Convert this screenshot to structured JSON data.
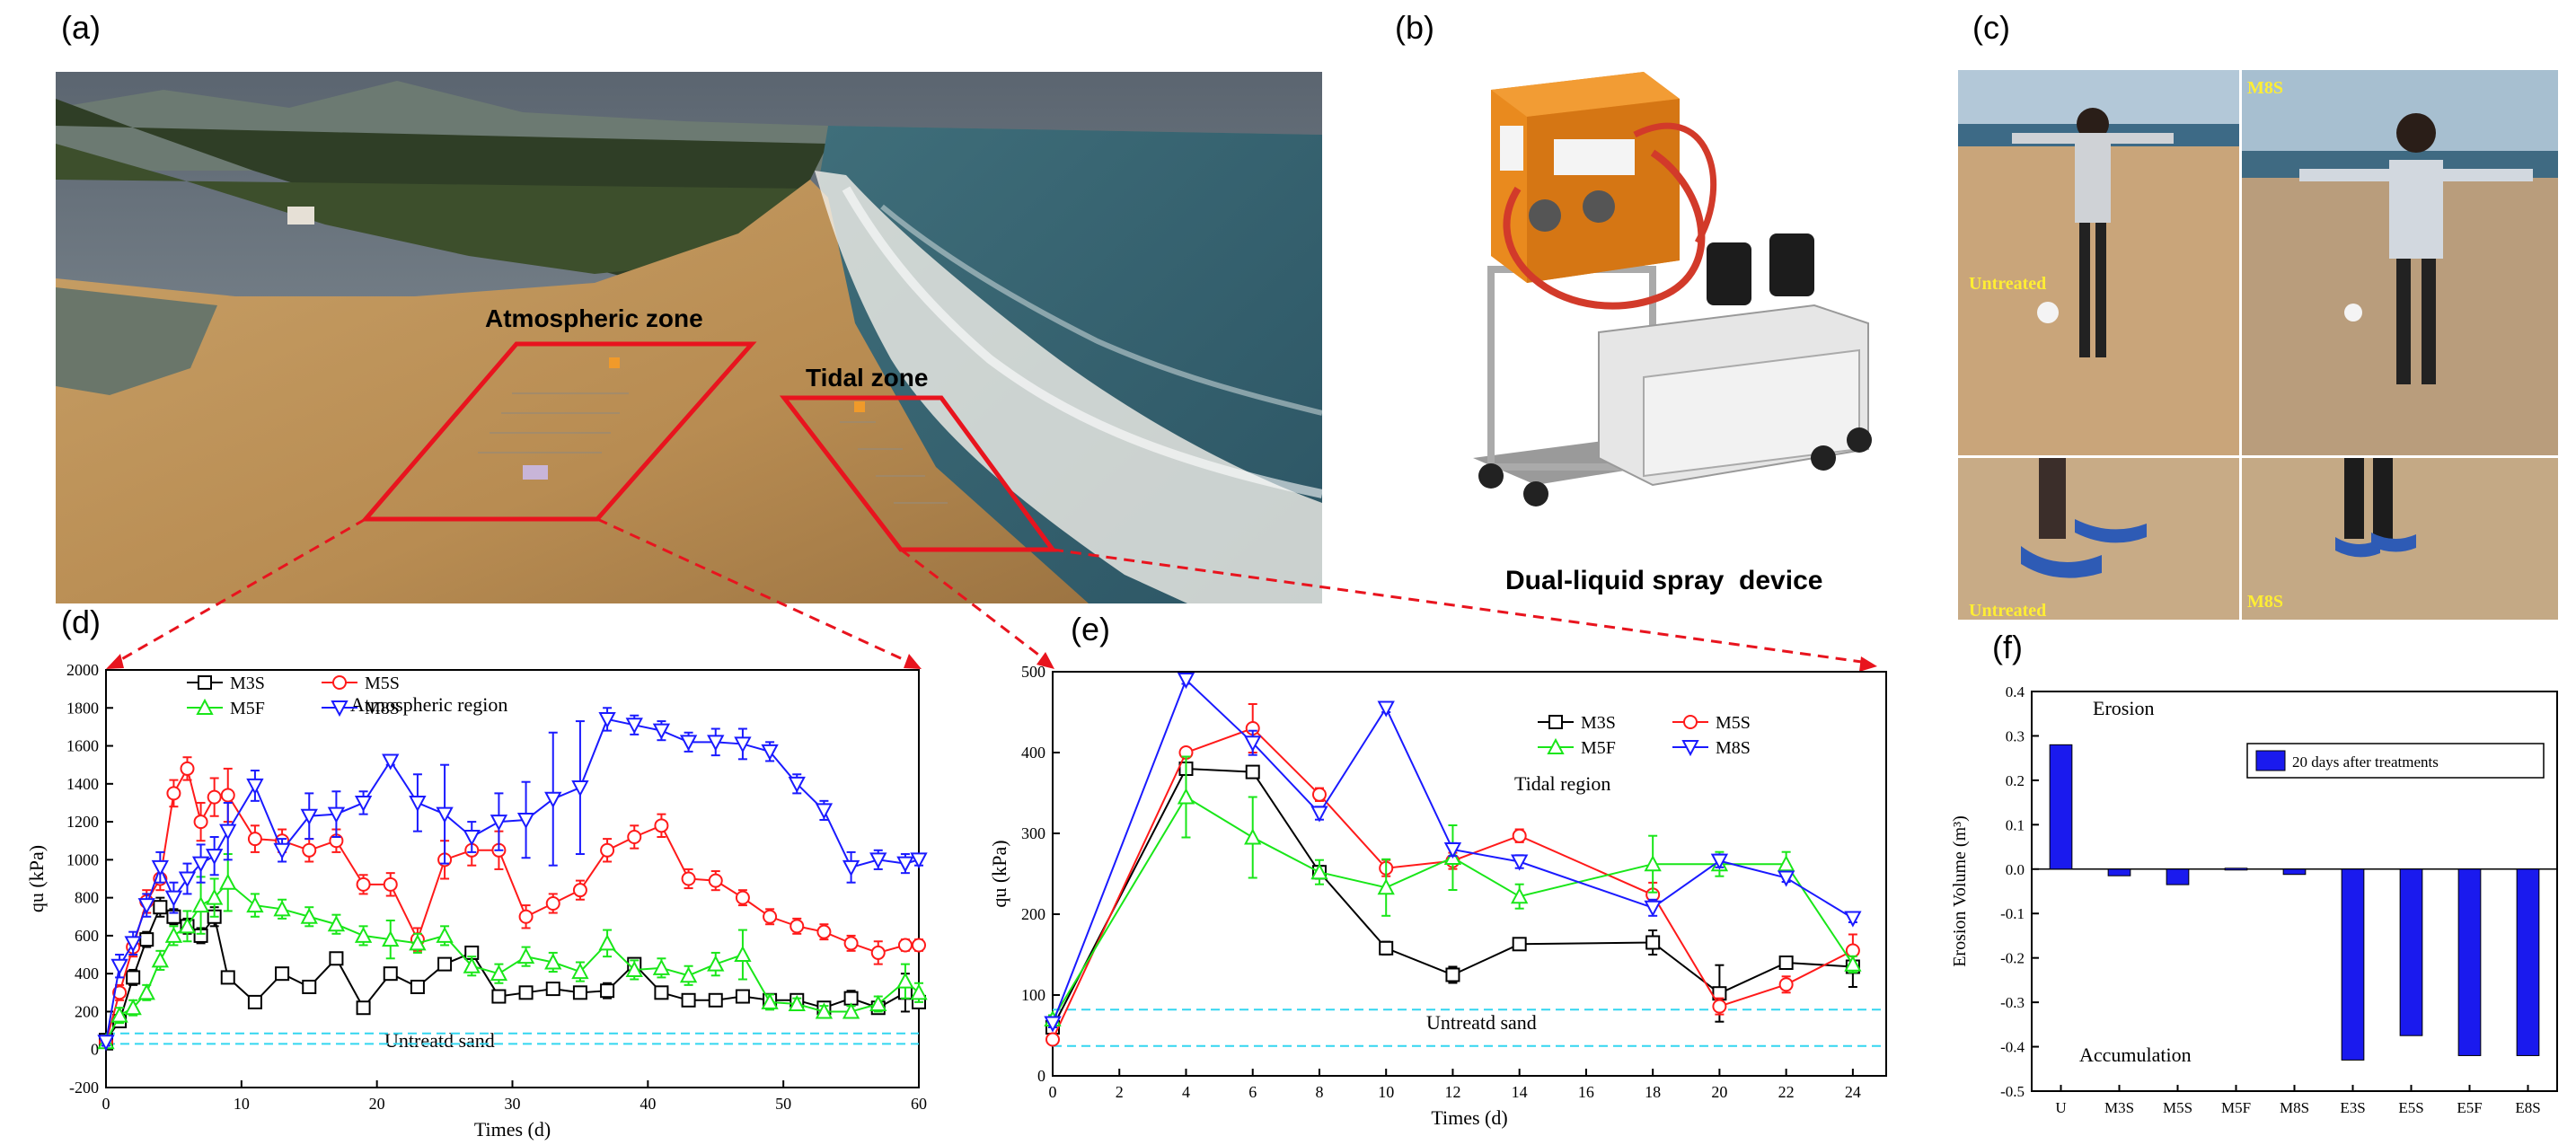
{
  "panels": {
    "a": {
      "letter": "(a)",
      "atmospheric_label": "Atmospheric zone",
      "tidal_label": "Tidal zone",
      "colors": {
        "outline": "#e8141e"
      }
    },
    "b": {
      "letter": "(b)",
      "device_label": "Dual-liquid spray  device"
    },
    "c": {
      "letter": "(c)",
      "labels": {
        "top_left": "Untreated",
        "top_right": "M8S",
        "bottom_left": "Untreated",
        "bottom_right": "M8S"
      }
    },
    "d": {
      "letter": "(d)"
    },
    "e": {
      "letter": "(e)"
    },
    "f": {
      "letter": "(f)"
    }
  },
  "colors": {
    "M3S": "#000000",
    "M5S": "#ff1a1a",
    "M5F": "#19e619",
    "M8S": "#1a1aff",
    "untreated_line": "#33d6f0",
    "bar": "#1a1aee",
    "arrow": "#e8141e"
  },
  "chart_data": [
    {
      "id": "d",
      "type": "line",
      "annotation": "Atmospheric region",
      "reference_label": "Untreatd sand",
      "reference_lines": [
        30,
        85
      ],
      "xlabel": "Times (d)",
      "ylabel": "qu (kPa)",
      "xlim": [
        0,
        60
      ],
      "ylim": [
        -200,
        2000
      ],
      "xticks": [
        0,
        10,
        20,
        30,
        40,
        50,
        60
      ],
      "yticks": [
        -200,
        0,
        200,
        400,
        600,
        800,
        1000,
        1200,
        1400,
        1600,
        1800,
        2000
      ],
      "legend": [
        "M3S",
        "M5S",
        "M5F",
        "M8S"
      ],
      "legend_position": "top-left",
      "series": [
        {
          "name": "M3S",
          "marker": "square",
          "x": [
            0,
            1,
            2,
            3,
            4,
            5,
            6,
            7,
            8,
            9,
            11,
            13,
            15,
            17,
            19,
            21,
            23,
            25,
            27,
            29,
            31,
            33,
            35,
            37,
            39,
            41,
            43,
            45,
            47,
            49,
            51,
            53,
            55,
            57,
            59,
            60
          ],
          "y": [
            50,
            150,
            380,
            580,
            750,
            700,
            650,
            600,
            700,
            380,
            250,
            400,
            330,
            480,
            220,
            400,
            330,
            450,
            510,
            280,
            300,
            320,
            300,
            310,
            450,
            300,
            260,
            260,
            280,
            260,
            260,
            220,
            270,
            220,
            300,
            250
          ],
          "err": [
            20,
            30,
            40,
            40,
            50,
            40,
            40,
            40,
            50,
            30,
            30,
            30,
            30,
            30,
            30,
            30,
            30,
            30,
            30,
            30,
            30,
            30,
            30,
            40,
            30,
            30,
            30,
            30,
            30,
            30,
            30,
            30,
            40,
            30,
            100,
            30
          ]
        },
        {
          "name": "M5S",
          "marker": "circle",
          "x": [
            0,
            1,
            2,
            3,
            4,
            5,
            6,
            7,
            8,
            9,
            11,
            13,
            15,
            17,
            19,
            21,
            23,
            25,
            27,
            29,
            31,
            33,
            35,
            37,
            39,
            41,
            43,
            45,
            47,
            49,
            51,
            53,
            55,
            57,
            59,
            60
          ],
          "y": [
            40,
            300,
            540,
            780,
            900,
            1350,
            1480,
            1200,
            1330,
            1340,
            1110,
            1100,
            1050,
            1100,
            870,
            870,
            580,
            1000,
            1050,
            1050,
            700,
            770,
            840,
            1050,
            1120,
            1180,
            900,
            890,
            800,
            700,
            650,
            620,
            560,
            510,
            550,
            550
          ],
          "err": [
            20,
            40,
            50,
            60,
            60,
            70,
            60,
            100,
            100,
            140,
            70,
            60,
            60,
            60,
            50,
            60,
            60,
            100,
            80,
            100,
            60,
            50,
            50,
            60,
            60,
            60,
            50,
            50,
            40,
            40,
            40,
            40,
            40,
            60,
            30,
            30
          ]
        },
        {
          "name": "M5F",
          "marker": "triangle-up",
          "x": [
            0,
            1,
            2,
            3,
            4,
            5,
            6,
            7,
            8,
            9,
            11,
            13,
            15,
            17,
            19,
            21,
            23,
            25,
            27,
            29,
            31,
            33,
            35,
            37,
            39,
            41,
            43,
            45,
            47,
            49,
            51,
            53,
            55,
            57,
            59,
            60
          ],
          "y": [
            40,
            180,
            220,
            300,
            470,
            600,
            650,
            760,
            800,
            880,
            760,
            740,
            700,
            660,
            600,
            580,
            560,
            600,
            440,
            400,
            490,
            460,
            410,
            560,
            420,
            430,
            390,
            450,
            500,
            250,
            240,
            200,
            200,
            240,
            360,
            300
          ],
          "err": [
            20,
            40,
            40,
            40,
            50,
            50,
            80,
            150,
            100,
            150,
            60,
            50,
            50,
            50,
            50,
            100,
            50,
            50,
            50,
            50,
            50,
            50,
            50,
            70,
            50,
            50,
            50,
            60,
            130,
            40,
            30,
            30,
            30,
            40,
            90,
            50
          ]
        },
        {
          "name": "M8S",
          "marker": "triangle-down",
          "x": [
            0,
            1,
            2,
            3,
            4,
            5,
            6,
            7,
            8,
            9,
            11,
            13,
            15,
            17,
            19,
            21,
            23,
            25,
            27,
            29,
            31,
            33,
            35,
            37,
            39,
            41,
            43,
            45,
            47,
            49,
            51,
            53,
            55,
            57,
            59,
            60
          ],
          "y": [
            40,
            440,
            560,
            760,
            960,
            800,
            900,
            980,
            1020,
            1150,
            1390,
            1050,
            1230,
            1240,
            1300,
            1520,
            1300,
            1240,
            1120,
            1200,
            1210,
            1320,
            1380,
            1740,
            1710,
            1680,
            1620,
            1620,
            1610,
            1570,
            1400,
            1260,
            960,
            1000,
            980,
            1000
          ],
          "err": [
            20,
            60,
            60,
            60,
            80,
            80,
            80,
            100,
            100,
            150,
            80,
            60,
            120,
            120,
            60,
            20,
            150,
            260,
            80,
            150,
            200,
            350,
            350,
            60,
            50,
            50,
            50,
            70,
            80,
            50,
            50,
            50,
            80,
            50,
            50,
            30
          ]
        }
      ]
    },
    {
      "id": "e",
      "type": "line",
      "annotation": "Tidal region",
      "reference_label": "Untreatd sand",
      "reference_lines": [
        37,
        82
      ],
      "xlabel": "Times (d)",
      "ylabel": "qu (kPa)",
      "xlim": [
        0,
        25
      ],
      "ylim": [
        0,
        500
      ],
      "xticks": [
        0,
        2,
        4,
        6,
        8,
        10,
        12,
        14,
        16,
        18,
        20,
        22,
        24
      ],
      "yticks": [
        0,
        100,
        200,
        300,
        400,
        500
      ],
      "legend": [
        "M3S",
        "M5S",
        "M5F",
        "M8S"
      ],
      "legend_position": "top-right",
      "series": [
        {
          "name": "M3S",
          "marker": "square",
          "x": [
            0,
            4,
            6,
            8,
            10,
            12,
            14,
            18,
            20,
            22,
            24
          ],
          "y": [
            60,
            380,
            376,
            252,
            158,
            125,
            163,
            165,
            102,
            140,
            135
          ],
          "err": [
            5,
            5,
            5,
            8,
            8,
            10,
            5,
            15,
            35,
            5,
            25
          ]
        },
        {
          "name": "M5S",
          "marker": "circle",
          "x": [
            0,
            4,
            6,
            8,
            10,
            12,
            14,
            18,
            20,
            22,
            24
          ],
          "y": [
            45,
            400,
            430,
            348,
            257,
            266,
            297,
            224,
            86,
            113,
            155
          ],
          "err": [
            5,
            5,
            30,
            8,
            10,
            10,
            8,
            15,
            10,
            10,
            20
          ]
        },
        {
          "name": "M5F",
          "marker": "triangle-up",
          "x": [
            0,
            4,
            6,
            8,
            10,
            12,
            14,
            18,
            20,
            22,
            24
          ],
          "y": [
            70,
            345,
            295,
            252,
            233,
            270,
            222,
            262,
            262,
            262,
            138
          ],
          "err": [
            5,
            50,
            50,
            15,
            35,
            40,
            15,
            35,
            15,
            15,
            10
          ]
        },
        {
          "name": "M8S",
          "marker": "triangle-down",
          "x": [
            0,
            4,
            6,
            8,
            10,
            12,
            14,
            18,
            20,
            22,
            24
          ],
          "y": [
            65,
            490,
            412,
            325,
            455,
            280,
            265,
            208,
            266,
            245,
            195
          ],
          "err": [
            5,
            5,
            15,
            8,
            5,
            8,
            8,
            10,
            8,
            5,
            5
          ]
        }
      ]
    },
    {
      "id": "f",
      "type": "bar",
      "annotation_top": "Erosion",
      "annotation_bottom": "Accumulation",
      "legend": [
        "20 days after treatments"
      ],
      "legend_position": "top-right",
      "ylabel": "Erosion Volume (m³)",
      "ylim": [
        -0.5,
        0.4
      ],
      "yticks": [
        -0.5,
        -0.4,
        -0.3,
        -0.2,
        -0.1,
        0.0,
        0.1,
        0.2,
        0.3,
        0.4
      ],
      "categories": [
        "U",
        "M3S",
        "M5S",
        "M5F",
        "M8S",
        "E3S",
        "E5S",
        "E5F",
        "E8S"
      ],
      "values": [
        0.28,
        -0.015,
        -0.035,
        0.002,
        -0.012,
        -0.43,
        -0.375,
        -0.42,
        -0.42
      ]
    }
  ]
}
